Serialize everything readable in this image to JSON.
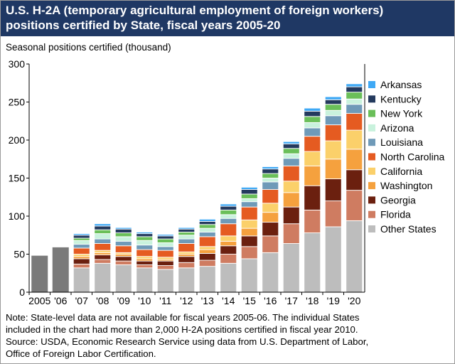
{
  "header": {
    "title_line1": "U.S. H-2A (temporary agricultural employment of foreign workers)",
    "title_line2": "positions certified by State, fiscal years 2005-20"
  },
  "colors": {
    "title_bg": "#1f3864",
    "national_bar": "#7a7a7a",
    "Arkansas": "#3fa9f5",
    "Kentucky": "#243a5e",
    "New York": "#6abf59",
    "Arizona": "#c9f2dd",
    "Louisiana": "#6f9ab8",
    "North Carolina": "#e55b21",
    "California": "#fbd06a",
    "Washington": "#f5a13e",
    "Georgia": "#6b200f",
    "Florida": "#cf7c61",
    "Other States": "#bdbdbd"
  },
  "chart_data": {
    "type": "bar",
    "stacked": true,
    "ylabel": "Seasonal positions certified (thousand)",
    "xlabel": "",
    "ylim": [
      0,
      300
    ],
    "yticks": [
      0,
      50,
      100,
      150,
      200,
      250,
      300
    ],
    "grid": false,
    "legend_position": "right",
    "categories": [
      "2005",
      "'06",
      "'07",
      "'08",
      "'09",
      "'10",
      "'11",
      "'12",
      "'13",
      "'14",
      "'15",
      "'16",
      "'17",
      "'18",
      "'19",
      "'20"
    ],
    "national_totals": {
      "2005": 48,
      "'06": 59
    },
    "series": [
      {
        "name": "Other States",
        "values": [
          null,
          null,
          32,
          38,
          36,
          32,
          30,
          32,
          34,
          38,
          44,
          52,
          64,
          78,
          86,
          94
        ]
      },
      {
        "name": "Florida",
        "values": [
          null,
          null,
          5,
          5,
          5,
          4,
          5,
          7,
          8,
          12,
          16,
          22,
          26,
          30,
          34,
          40
        ]
      },
      {
        "name": "Georgia",
        "values": [
          null,
          null,
          7,
          6,
          6,
          5,
          6,
          8,
          9,
          11,
          14,
          18,
          22,
          32,
          29,
          27
        ]
      },
      {
        "name": "Washington",
        "values": [
          null,
          null,
          3,
          3,
          3,
          3,
          2,
          3,
          5,
          6,
          10,
          13,
          19,
          26,
          26,
          27
        ]
      },
      {
        "name": "California",
        "values": [
          null,
          null,
          3,
          3,
          2,
          3,
          3,
          3,
          4,
          7,
          11,
          12,
          15,
          19,
          24,
          25
        ]
      },
      {
        "name": "North Carolina",
        "values": [
          null,
          null,
          8,
          9,
          9,
          9,
          9,
          11,
          13,
          16,
          17,
          18,
          20,
          20,
          21,
          22
        ]
      },
      {
        "name": "Louisiana",
        "values": [
          null,
          null,
          5,
          6,
          6,
          6,
          5,
          6,
          6,
          7,
          7,
          10,
          10,
          11,
          12,
          12
        ]
      },
      {
        "name": "Arizona",
        "values": [
          null,
          null,
          5,
          7,
          6,
          6,
          5,
          5,
          5,
          5,
          4,
          5,
          6,
          7,
          7,
          7
        ]
      },
      {
        "name": "New York",
        "values": [
          null,
          null,
          3,
          5,
          5,
          5,
          5,
          4,
          5,
          6,
          6,
          6,
          7,
          8,
          8,
          9
        ]
      },
      {
        "name": "Kentucky",
        "values": [
          null,
          null,
          4,
          5,
          5,
          4,
          4,
          4,
          4,
          5,
          6,
          6,
          6,
          7,
          6,
          7
        ]
      },
      {
        "name": "Arkansas",
        "values": [
          null,
          null,
          2,
          3,
          2,
          2,
          2,
          2,
          3,
          3,
          3,
          3,
          3,
          4,
          4,
          4
        ]
      }
    ],
    "legend_order": [
      "Arkansas",
      "Kentucky",
      "New York",
      "Arizona",
      "Louisiana",
      "North Carolina",
      "California",
      "Washington",
      "Georgia",
      "Florida",
      "Other States"
    ]
  },
  "note": {
    "line1": "Note: State-level data are not available for fiscal years 2005-06. The individual States",
    "line2": "included in the chart had more than 2,000 H-2A positions certified in fiscal year 2010.",
    "line3": "Source: USDA, Economic Research Service using data from U.S. Department of Labor,",
    "line4": "Office of Foreign Labor Certification."
  }
}
